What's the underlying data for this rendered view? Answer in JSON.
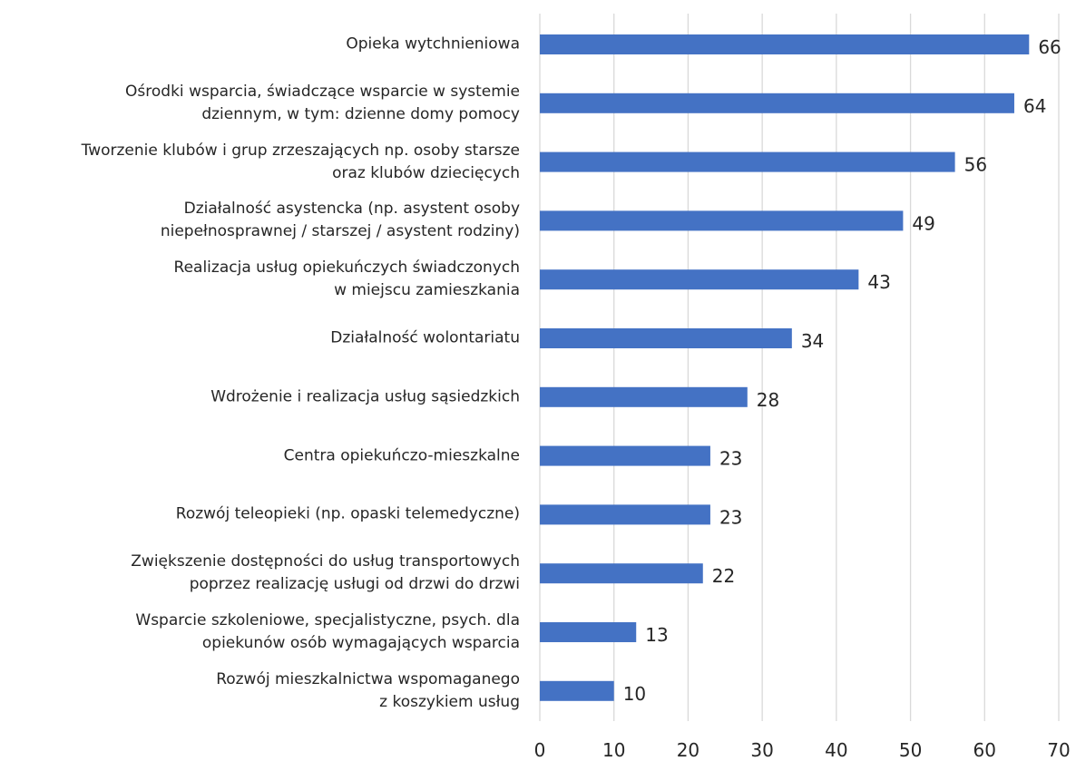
{
  "chart_data": {
    "type": "barh",
    "categories": [
      "Opieka wytchnieniowa",
      "Ośrodki wsparcia, świadczące wsparcie w systemie\ndziennym, w tym: dzienne domy pomocy",
      "Tworzenie klubów i grup zrzeszających np. osoby starsze\noraz klubów dziecięcych",
      "Działalność asystencka (np. asystent osoby\nniepełnosprawnej / starszej / asystent rodziny)",
      "Realizacja usług opiekuńczych świadczonych\nw miejscu zamieszkania",
      "Działalność wolontariatu",
      "Wdrożenie i realizacja usług sąsiedzkich",
      "Centra opiekuńczo-mieszkalne",
      "Rozwój teleopieki (np. opaski telemedyczne)",
      "Zwiększenie dostępności do usług transportowych\npoprzez realizację usługi od drzwi do drzwi",
      "Wsparcie szkoleniowe, specjalistyczne, psych. dla\nopiekunów osób wymagających wsparcia",
      "Rozwój mieszkalnictwa wspomaganego\nz koszykiem usług"
    ],
    "values": [
      66,
      64,
      56,
      49,
      43,
      34,
      28,
      23,
      23,
      22,
      13,
      10
    ],
    "color": "#4472c4",
    "xlim": [
      0,
      70
    ],
    "xticks": [
      0,
      10,
      20,
      30,
      40,
      50,
      60,
      70
    ],
    "grid": true
  }
}
